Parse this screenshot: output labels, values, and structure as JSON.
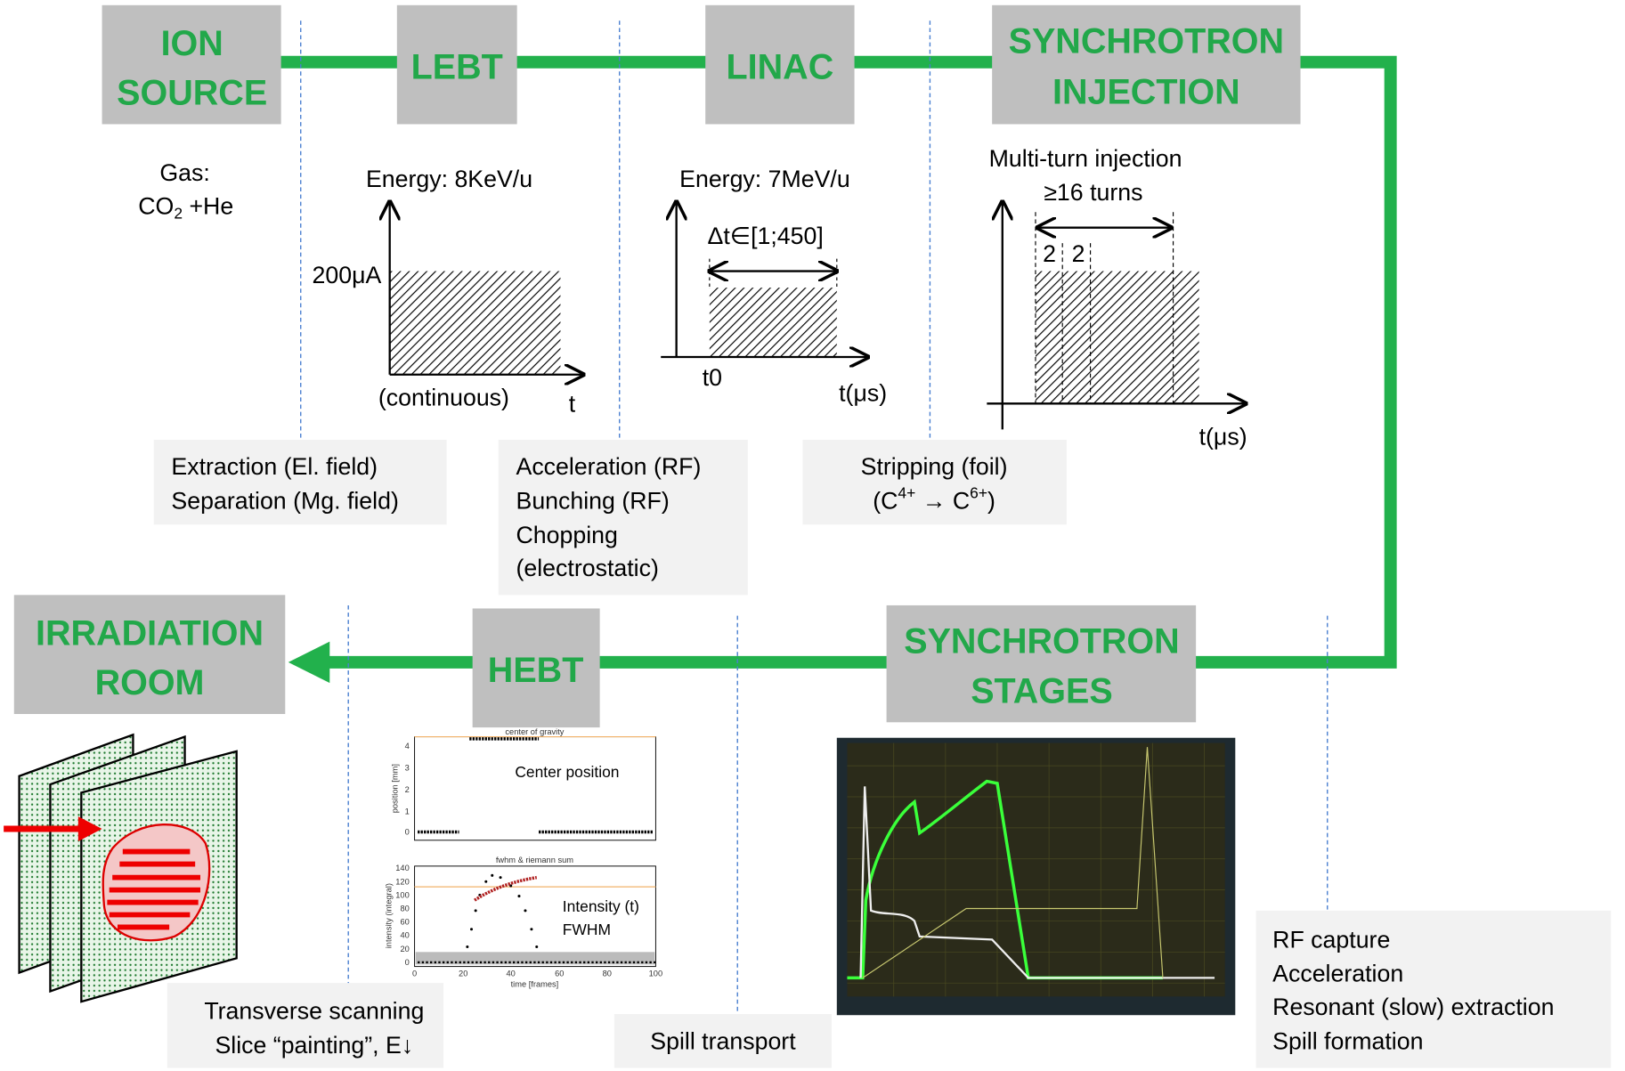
{
  "stages": [
    {
      "lines": [
        "ION",
        "SOURCE"
      ]
    },
    {
      "lines": [
        "LEBT"
      ]
    },
    {
      "lines": [
        "LINAC"
      ]
    },
    {
      "lines": [
        "SYNCHROTRON",
        "INJECTION"
      ]
    },
    {
      "lines": [
        "SYNCHROTRON",
        "STAGES"
      ]
    },
    {
      "lines": [
        "HEBT"
      ]
    },
    {
      "lines": [
        "IRRADIATION",
        "ROOM"
      ]
    }
  ],
  "gas": {
    "label": "Gas:",
    "formula": "CO",
    "sub": "2",
    "rest": " +He"
  },
  "lebt_plot": {
    "energy": "Energy: 8KeV/u",
    "current": "200μA",
    "note": "(continuous)",
    "axis": "t"
  },
  "linac_plot": {
    "energy": "Energy: 7MeV/u",
    "interval": "Δt∈[1;450]",
    "start": "t0",
    "axis": "t(μs)"
  },
  "injection_plot": {
    "title": "Multi-turn injection",
    "turns": "≥16 turns",
    "turn_a": "2",
    "turn_b": "2",
    "axis": "t(μs)"
  },
  "notes": [
    {
      "lines": [
        "Extraction (El. field)",
        "Separation (Mg. field)"
      ]
    },
    {
      "lines": [
        "Acceleration (RF)",
        "Bunching (RF)",
        "Chopping",
        "(electrostatic)"
      ]
    },
    {
      "lines": [
        "Stripping (foil)"
      ],
      "formula": [
        "(C",
        "4+",
        " → C",
        "6+",
        ")"
      ]
    },
    {
      "lines": [
        "Transverse scanning",
        "Slice “painting”, E↓"
      ]
    },
    {
      "lines": [
        "Spill transport"
      ]
    },
    {
      "lines": [
        "RF capture",
        "Acceleration",
        "Resonant (slow) extraction",
        "Spill formation"
      ]
    }
  ],
  "hebt_plots": {
    "top_title": "center of gravity",
    "top_label": "Center position",
    "top_ylabel": "position [mm]",
    "top_yticks": [
      "0",
      "1",
      "2",
      "3",
      "4"
    ],
    "bottom_title": "fwhm & riemann sum",
    "bottom_label": [
      "Intensity (t)",
      "FWHM"
    ],
    "bottom_ylabel": "intensity (integral)",
    "bottom_yticks": [
      "0",
      "20",
      "40",
      "60",
      "80",
      "100",
      "120",
      "140"
    ],
    "xticks": [
      "0",
      "20",
      "40",
      "60",
      "80",
      "100"
    ],
    "xlabel": "time [frames]"
  }
}
